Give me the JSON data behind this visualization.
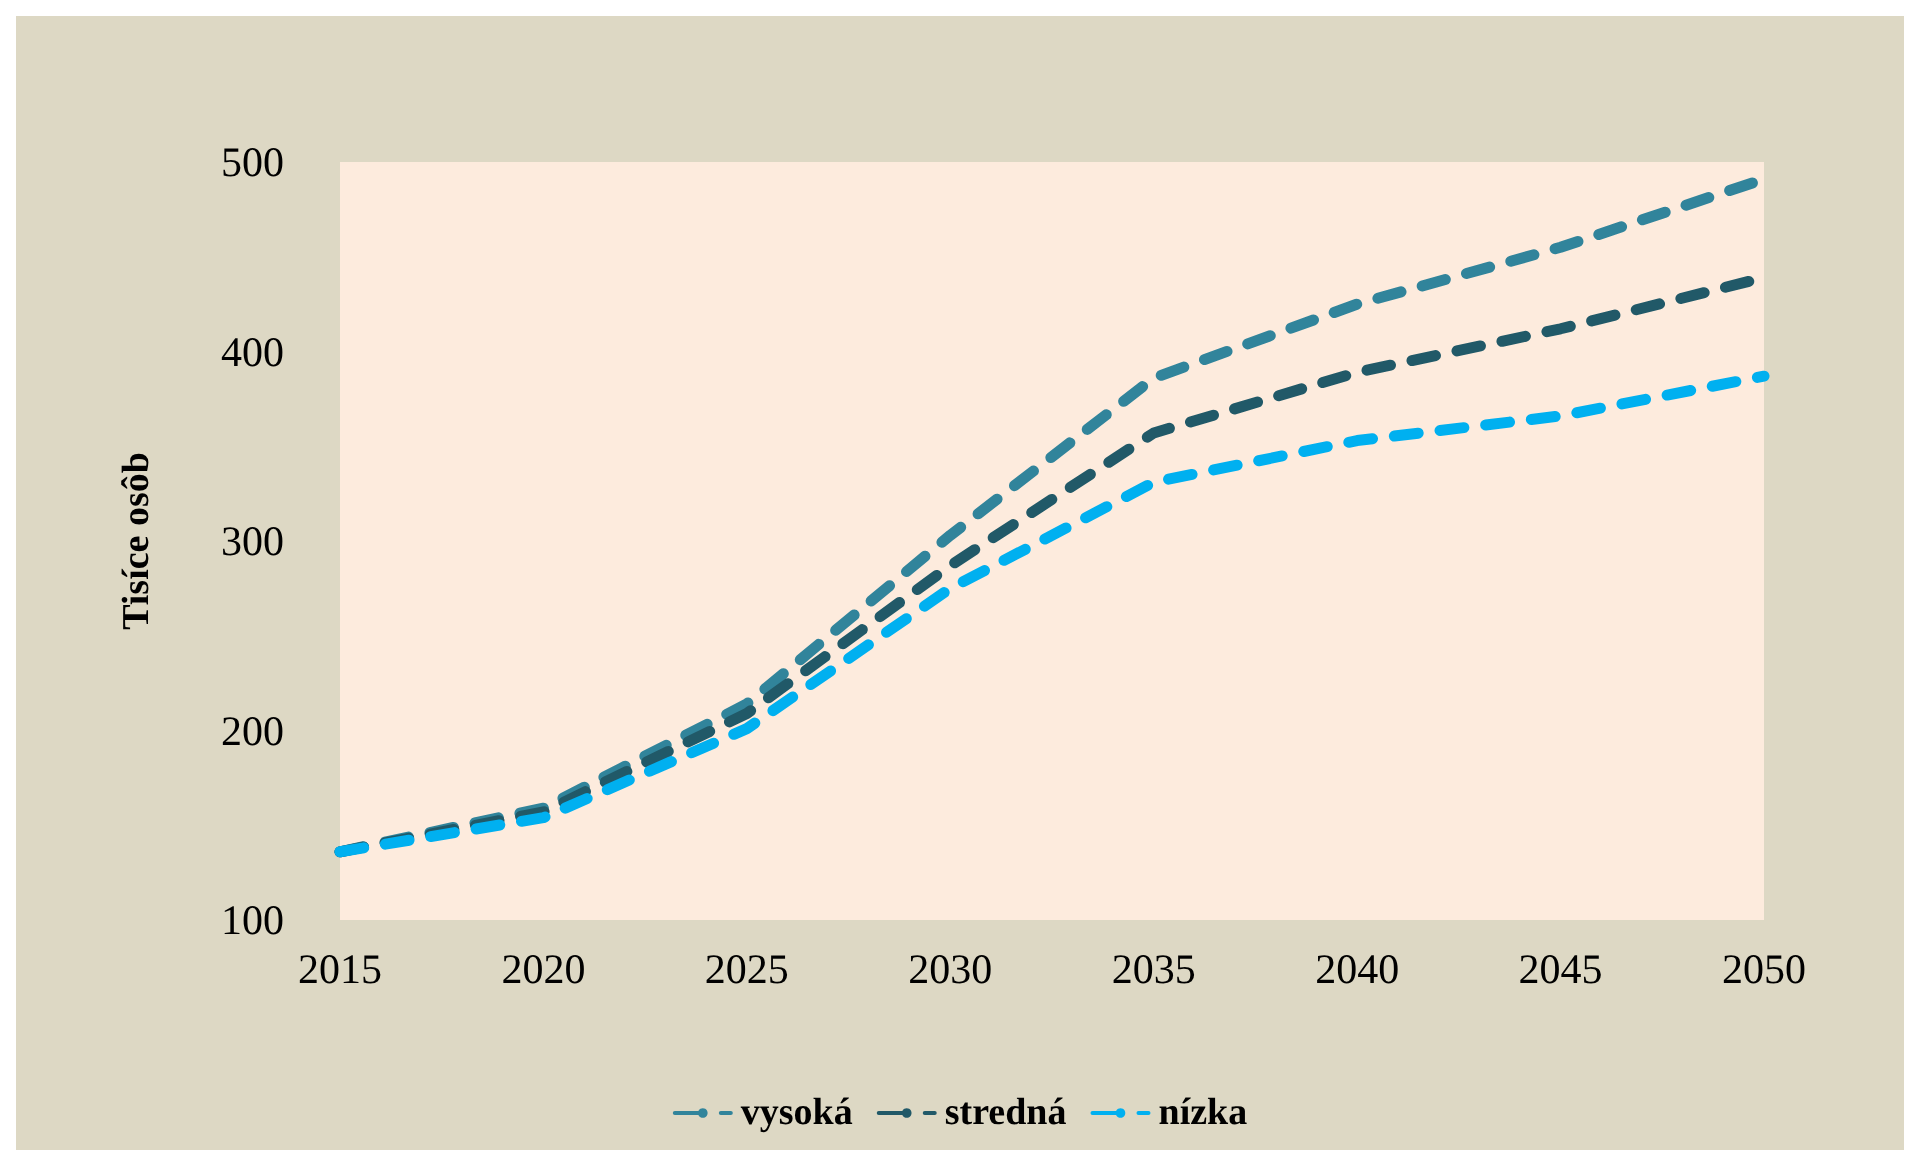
{
  "chart_data": {
    "type": "line",
    "ylabel": "Tisíce osôb",
    "x": [
      2015,
      2020,
      2025,
      2030,
      2035,
      2040,
      2045,
      2050
    ],
    "xlim": [
      2015,
      2050
    ],
    "xticks": [
      2015,
      2020,
      2025,
      2030,
      2035,
      2040,
      2045,
      2050
    ],
    "ylim": [
      100,
      500
    ],
    "yticks": [
      100,
      200,
      300,
      400,
      500
    ],
    "grid": false,
    "legend": "bottom",
    "marker": "none",
    "line_style": "dashed",
    "series": [
      {
        "name": "vysoká",
        "color": "#31849b",
        "values": [
          136,
          159,
          214,
          303,
          386,
          425,
          455,
          491
        ]
      },
      {
        "name": "stredná",
        "color": "#215968",
        "values": [
          136,
          157,
          209,
          287,
          357,
          389,
          412,
          439
        ]
      },
      {
        "name": "nízka",
        "color": "#00b0f0",
        "values": [
          136,
          154,
          201,
          275,
          331,
          353,
          366,
          387
        ]
      }
    ]
  }
}
